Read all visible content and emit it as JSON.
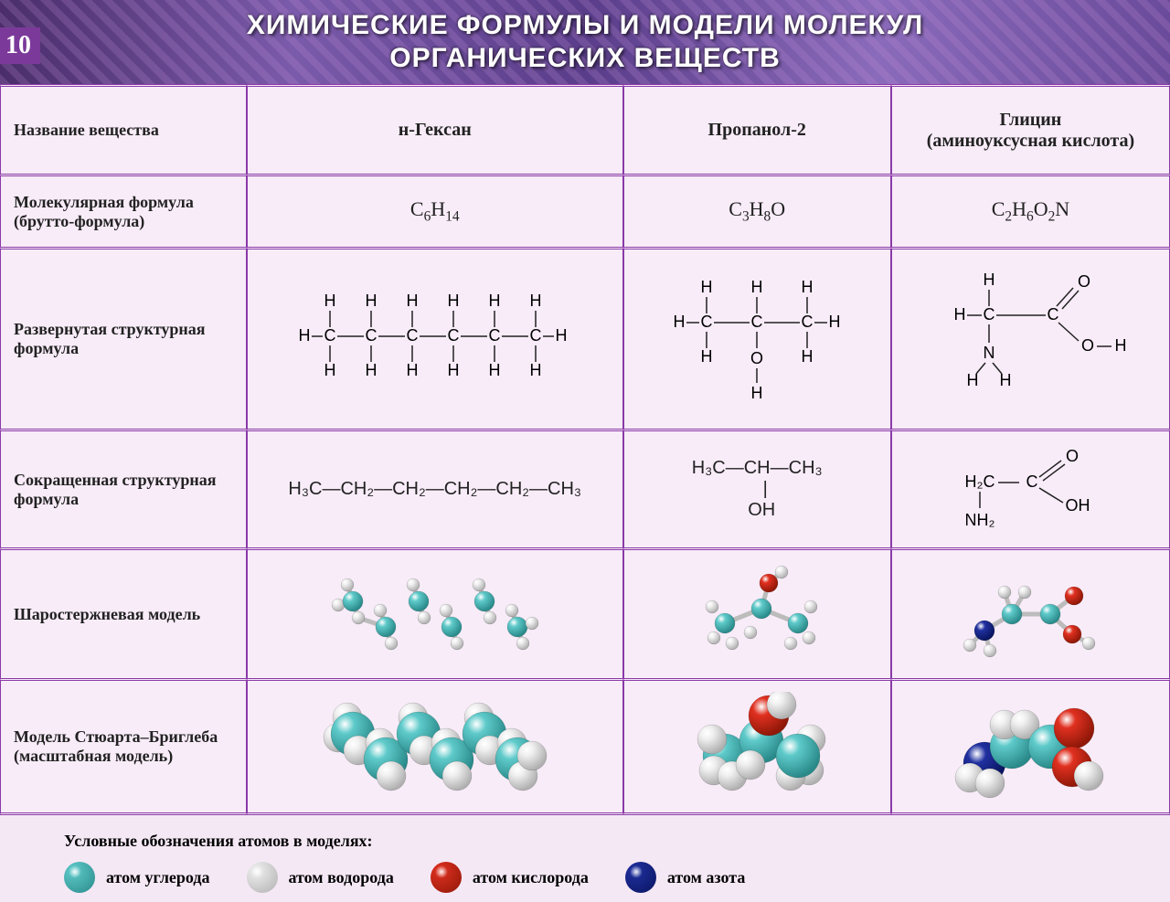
{
  "page_number": "10",
  "title_line1": "ХИМИЧЕСКИЕ ФОРМУЛЫ И МОДЕЛИ МОЛЕКУЛ",
  "title_line2": "ОРГАНИЧЕСКИХ ВЕЩЕСТВ",
  "colors": {
    "border": "#8a3aa8",
    "cell_bg": "#f8ecf8",
    "text": "#222222",
    "carbon": "#5fcaca",
    "carbon_dark": "#2a8a8a",
    "hydrogen": "#f0f0f0",
    "hydrogen_dark": "#b0b0b0",
    "oxygen": "#e03020",
    "oxygen_dark": "#901808",
    "nitrogen": "#2030a0",
    "nitrogen_dark": "#0a1560"
  },
  "table": {
    "row_labels": [
      "Название вещества",
      "Молекулярная формула (брутто-формула)",
      "Развернутая структурная формула",
      "Сокращенная структурная формула",
      "Шаростержневая модель",
      "Модель Стюарта–Бриглеба (масштабная модель)"
    ],
    "compounds": [
      {
        "name": "н-Гексан",
        "name_extra": "",
        "molec_formula_parts": [
          "C",
          "6",
          "H",
          "14"
        ],
        "short_structure": "H₃C—CH₂—CH₂—CH₂—CH₂—CH₃"
      },
      {
        "name": "Пропанол-2",
        "name_extra": "",
        "molec_formula_parts": [
          "C",
          "3",
          "H",
          "8",
          "O",
          ""
        ],
        "short_structure_lines": [
          "H₃C—CH—CH₃",
          "|",
          "OH"
        ]
      },
      {
        "name": "Глицин",
        "name_extra": "(аминоуксусная кислота)",
        "molec_formula_parts": [
          "C",
          "2",
          "H",
          "6",
          "O",
          "2",
          "N",
          ""
        ],
        "short_structure_svg": true
      }
    ]
  },
  "legend": {
    "title": "Условные обозначения атомов в моделях:",
    "items": [
      {
        "label": "атом углерода",
        "color_key": "carbon"
      },
      {
        "label": "атом водорода",
        "color_key": "hydrogen"
      },
      {
        "label": "атом кислорода",
        "color_key": "oxygen"
      },
      {
        "label": "атом азота",
        "color_key": "nitrogen"
      }
    ]
  },
  "models": {
    "ball_stick_r": {
      "C": 11,
      "H": 7,
      "O": 10,
      "N": 11
    },
    "spacefill_r": {
      "C": 24,
      "H": 16,
      "O": 22,
      "N": 23
    }
  }
}
